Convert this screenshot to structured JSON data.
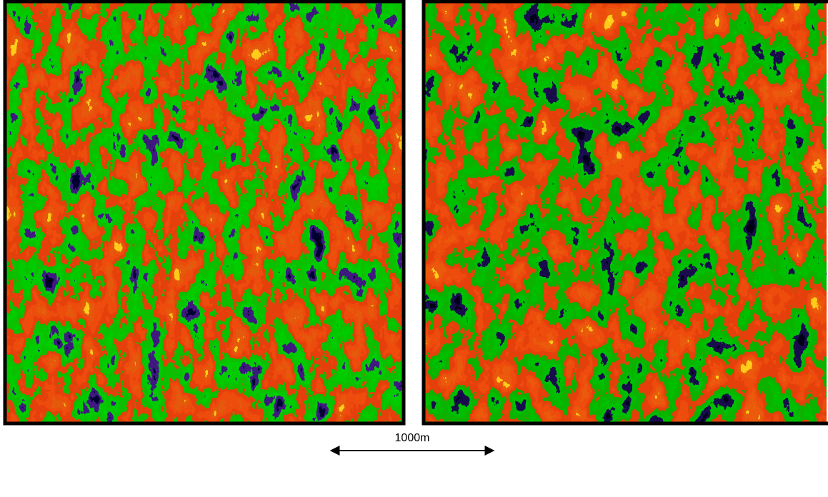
{
  "scale_bar": {
    "label": "1000m"
  }
}
